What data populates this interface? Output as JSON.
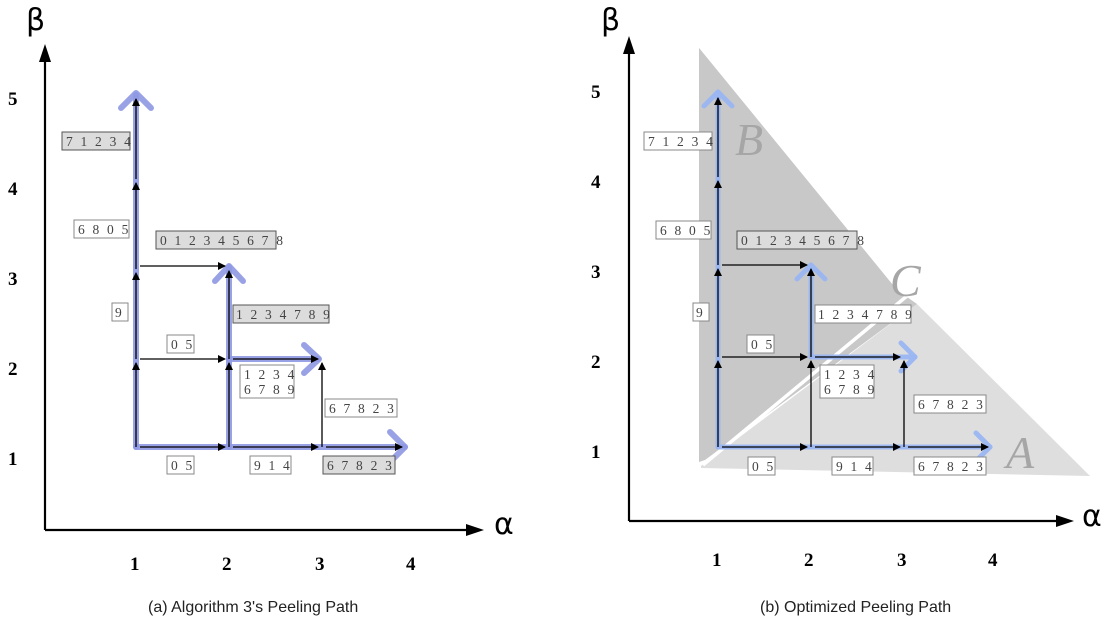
{
  "panel_a": {
    "caption": "(a) Algorithm 3's Peeling Path",
    "x_axis_label": "α",
    "y_axis_label": "β",
    "x_ticks": [
      "1",
      "2",
      "3",
      "4"
    ],
    "y_ticks": [
      "1",
      "2",
      "3",
      "4",
      "5"
    ],
    "labels": [
      "7 1 2 3 4",
      "6 8 0 5",
      "0 1 2 3 4 5 6 7 8",
      "9",
      "1 2 3 4 7 8 9",
      "0 5",
      "1 2 3 4",
      "6 7 8 9",
      "6 7 8 2 3",
      "0 5",
      "9 1 4",
      "6 7 8 2 3"
    ]
  },
  "panel_b": {
    "caption": "(b) Optimized Peeling Path",
    "x_axis_label": "α",
    "y_axis_label": "β",
    "x_ticks": [
      "1",
      "2",
      "3",
      "4"
    ],
    "y_ticks": [
      "1",
      "2",
      "3",
      "4",
      "5"
    ],
    "region_letters": [
      "B",
      "C",
      "A"
    ],
    "labels": [
      "7 1 2 3 4",
      "6 8 0 5",
      "0 1 2 3 4 5 6 7 8",
      "9",
      "1 2 3 4 7 8 9",
      "0 5",
      "1 2 3 4",
      "6 7 8 9",
      "6 7 8 2 3",
      "0 5",
      "9 1 4",
      "6 7 8 2 3"
    ]
  },
  "colors": {
    "path_a": "#8f98e3",
    "path_b": "#9ab6f2",
    "region_dark": "#c8c8c8",
    "region_light": "#dedede"
  }
}
